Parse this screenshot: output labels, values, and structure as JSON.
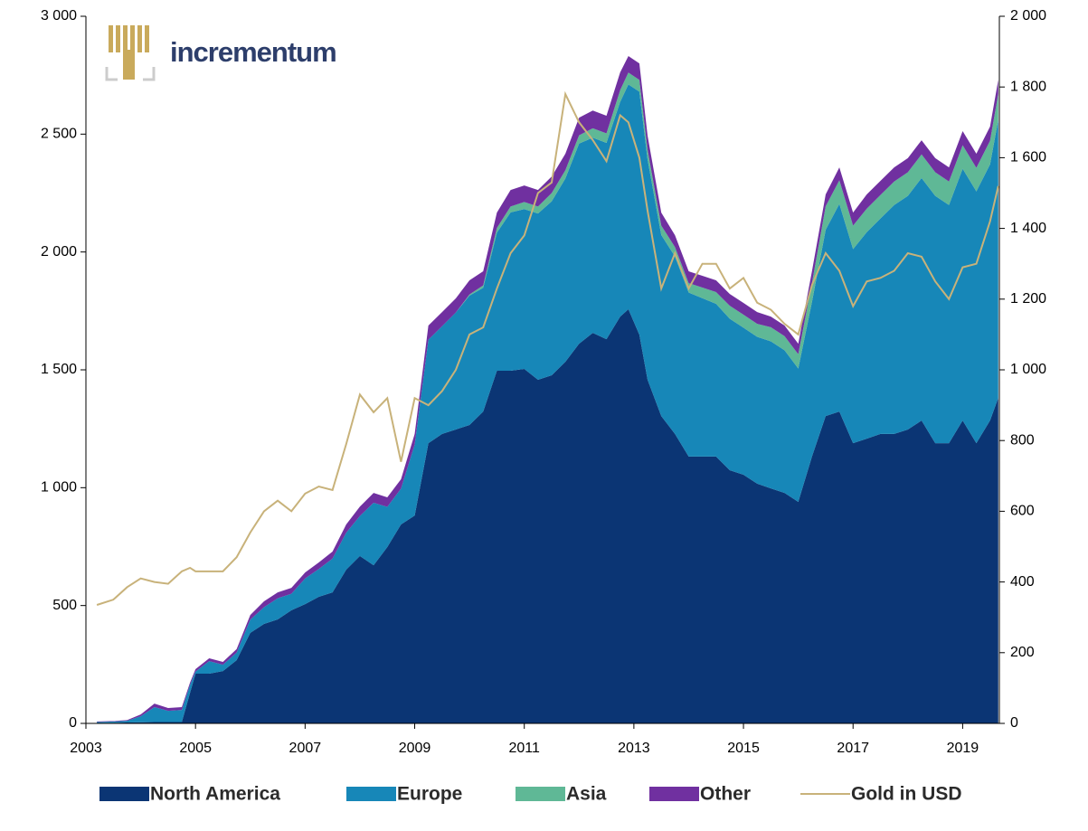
{
  "chart_data": {
    "type": "stacked_area",
    "logo": "incrementum",
    "x": [
      2003.2,
      2003.5,
      2003.75,
      2004.0,
      2004.25,
      2004.5,
      2004.75,
      2004.9,
      2005.0,
      2005.25,
      2005.5,
      2005.75,
      2006.0,
      2006.25,
      2006.5,
      2006.75,
      2007.0,
      2007.25,
      2007.5,
      2007.75,
      2008.0,
      2008.25,
      2008.5,
      2008.75,
      2009.0,
      2009.25,
      2009.5,
      2009.75,
      2010.0,
      2010.25,
      2010.5,
      2010.75,
      2011.0,
      2011.25,
      2011.5,
      2011.75,
      2012.0,
      2012.25,
      2012.5,
      2012.75,
      2012.9,
      2013.1,
      2013.25,
      2013.5,
      2013.75,
      2014.0,
      2014.25,
      2014.5,
      2014.75,
      2015.0,
      2015.25,
      2015.5,
      2015.75,
      2016.0,
      2016.25,
      2016.5,
      2016.75,
      2017.0,
      2017.25,
      2017.5,
      2017.75,
      2018.0,
      2018.25,
      2018.5,
      2018.75,
      2019.0,
      2019.25,
      2019.5,
      2019.65
    ],
    "series": [
      {
        "name": "North America",
        "color": "#0b3574",
        "values": [
          2,
          3,
          4,
          5,
          6,
          6,
          6,
          130,
          211,
          211,
          222,
          268,
          384,
          422,
          441,
          480,
          506,
          537,
          556,
          652,
          710,
          671,
          748,
          844,
          882,
          1189,
          1228,
          1247,
          1266,
          1323,
          1496,
          1496,
          1504,
          1458,
          1477,
          1534,
          1611,
          1657,
          1630,
          1726,
          1757,
          1649,
          1458,
          1304,
          1228,
          1132,
          1132,
          1132,
          1074,
          1055,
          1017,
          997,
          978,
          940,
          1132,
          1304,
          1323,
          1189,
          1208,
          1228,
          1228,
          1247,
          1285,
          1189,
          1189,
          1285,
          1189,
          1285,
          1381
        ]
      },
      {
        "name": "Europe",
        "color": "#1787b8",
        "values": [
          4,
          5,
          7,
          25,
          63,
          47,
          51,
          33,
          9,
          53,
          27,
          32,
          56,
          71,
          90,
          70,
          109,
          118,
          143,
          157,
          170,
          265,
          171,
          152,
          301,
          439,
          457,
          496,
          549,
          525,
          586,
          672,
          678,
          705,
          738,
          778,
          849,
          828,
          833,
          911,
          954,
          1031,
          935,
          768,
          753,
          696,
          672,
          648,
          643,
          624,
          623,
          624,
          605,
          566,
          656,
          790,
          881,
          823,
          876,
          914,
          971,
          991,
          1029,
          1049,
          1010,
          1068,
          1068,
          1087,
          1180
        ]
      },
      {
        "name": "Asia",
        "color": "#5fb896",
        "values": [
          0,
          0,
          0,
          0,
          0,
          0,
          0,
          0,
          0,
          0,
          0,
          0,
          0,
          0,
          0,
          0,
          0,
          0,
          0,
          0,
          0,
          0,
          0,
          0,
          0,
          0,
          0,
          0,
          5,
          10,
          20,
          25,
          30,
          30,
          35,
          35,
          35,
          40,
          40,
          50,
          50,
          50,
          40,
          40,
          40,
          40,
          45,
          50,
          55,
          55,
          55,
          60,
          60,
          60,
          80,
          100,
          100,
          100,
          100,
          100,
          100,
          100,
          100,
          100,
          100,
          100,
          100,
          100,
          110
        ]
      },
      {
        "name": "Other",
        "color": "#7030a0",
        "values": [
          2,
          2,
          3,
          8,
          15,
          12,
          12,
          10,
          10,
          12,
          12,
          15,
          20,
          25,
          25,
          25,
          25,
          28,
          30,
          35,
          40,
          42,
          40,
          40,
          45,
          60,
          60,
          60,
          60,
          60,
          65,
          70,
          70,
          70,
          70,
          70,
          75,
          75,
          75,
          75,
          70,
          70,
          60,
          55,
          50,
          50,
          50,
          50,
          50,
          50,
          50,
          45,
          45,
          45,
          50,
          50,
          55,
          55,
          60,
          60,
          60,
          60,
          60,
          60,
          60,
          60,
          60,
          60,
          60
        ]
      },
      {
        "name": "Gold in USD",
        "color": "#c8b27a",
        "axis": "y2",
        "line": true,
        "values": [
          335,
          350,
          385,
          410,
          400,
          395,
          430,
          440,
          430,
          430,
          430,
          470,
          540,
          600,
          630,
          600,
          650,
          670,
          660,
          790,
          930,
          880,
          920,
          740,
          920,
          900,
          940,
          1000,
          1100,
          1120,
          1230,
          1330,
          1380,
          1500,
          1530,
          1780,
          1700,
          1650,
          1590,
          1720,
          1700,
          1600,
          1450,
          1230,
          1330,
          1230,
          1300,
          1300,
          1230,
          1260,
          1190,
          1170,
          1130,
          1100,
          1240,
          1330,
          1280,
          1180,
          1250,
          1260,
          1280,
          1330,
          1320,
          1250,
          1200,
          1290,
          1300,
          1420,
          1520
        ]
      }
    ],
    "xlim": [
      2003,
      2019.67
    ],
    "xticks": [
      2003,
      2005,
      2007,
      2009,
      2011,
      2013,
      2015,
      2017,
      2019
    ],
    "ylim": [
      0,
      3000
    ],
    "yticks": [
      0,
      500,
      {
        "value": 1000,
        "label": "1 000"
      },
      {
        "value": 1500,
        "label": "1 500"
      },
      {
        "value": 2000,
        "label": "2 000"
      },
      {
        "value": 2500,
        "label": "2 500"
      },
      {
        "value": 3000,
        "label": "3 000"
      }
    ],
    "y2lim": [
      0,
      2000
    ],
    "y2ticks": [
      0,
      200,
      400,
      600,
      800,
      {
        "value": 1000,
        "label": "1 000"
      },
      {
        "value": 1200,
        "label": "1 200"
      },
      {
        "value": 1400,
        "label": "1 400"
      },
      {
        "value": 1600,
        "label": "1 600"
      },
      {
        "value": 1800,
        "label": "1 800"
      },
      {
        "value": 2000,
        "label": "2 000"
      }
    ],
    "legend": "bottom"
  }
}
